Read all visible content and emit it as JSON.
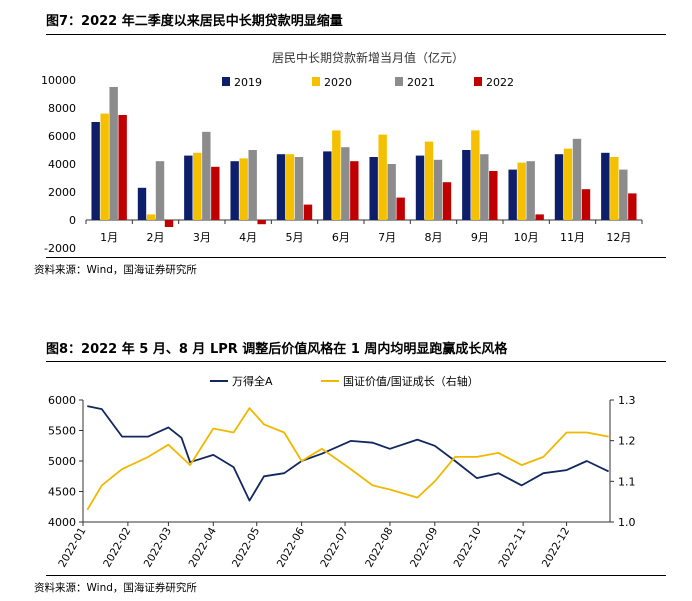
{
  "figure1": {
    "title": "图7：2022 年二季度以来居民中长期贷款明显缩量",
    "source": "资料来源：Wind，国海证券研究所"
  },
  "figure2": {
    "title": "图8：2022 年 5 月、8 月 LPR 调整后价值风格在 1 周内均明显跑赢成长风格",
    "source": "资料来源：Wind，国海证券研究所"
  },
  "colors": {
    "y2019": "#0d1f6b",
    "y2020": "#f5c000",
    "y2021": "#8c8c8c",
    "y2022": "#c00000",
    "wande": "#12275e",
    "value_growth": "#f0b800"
  },
  "chart_data": [
    {
      "type": "bar",
      "title": "居民中长期贷款新增当月值（亿元）",
      "categories": [
        "1月",
        "2月",
        "3月",
        "4月",
        "5月",
        "6月",
        "7月",
        "8月",
        "9月",
        "10月",
        "11月",
        "12月"
      ],
      "series": [
        {
          "name": "2019",
          "values": [
            7000,
            2300,
            4600,
            4200,
            4700,
            4900,
            4500,
            4600,
            5000,
            3600,
            4700,
            4800
          ]
        },
        {
          "name": "2020",
          "values": [
            7600,
            400,
            4800,
            4400,
            4700,
            6400,
            6100,
            5600,
            6400,
            4100,
            5100,
            4500
          ]
        },
        {
          "name": "2021",
          "values": [
            9500,
            4200,
            6300,
            5000,
            4500,
            5200,
            4000,
            4300,
            4700,
            4200,
            5800,
            3600
          ]
        },
        {
          "name": "2022",
          "values": [
            7500,
            -500,
            3800,
            -300,
            1100,
            4200,
            1600,
            2700,
            3500,
            400,
            2200,
            1900
          ]
        }
      ],
      "yticks": [
        "-2000",
        "0",
        "2000",
        "4000",
        "6000",
        "8000",
        "10000"
      ],
      "ylim": [
        -2000,
        10000
      ],
      "legend_position": "top"
    },
    {
      "type": "line",
      "series": [
        {
          "name": "万得全A",
          "axis": "left",
          "x": [
            "2022-01-04",
            "2022-01-14",
            "2022-01-28",
            "2022-02-15",
            "2022-03-01",
            "2022-03-10",
            "2022-03-16",
            "2022-04-01",
            "2022-04-15",
            "2022-04-26",
            "2022-05-06",
            "2022-05-20",
            "2022-06-01",
            "2022-06-15",
            "2022-07-05",
            "2022-07-20",
            "2022-08-01",
            "2022-08-20",
            "2022-09-01",
            "2022-09-15",
            "2022-09-30",
            "2022-10-15",
            "2022-10-31",
            "2022-11-15",
            "2022-12-01",
            "2022-12-15",
            "2022-12-30"
          ],
          "y": [
            5900,
            5850,
            5400,
            5400,
            5550,
            5380,
            4980,
            5100,
            4900,
            4350,
            4750,
            4800,
            5000,
            5120,
            5330,
            5300,
            5200,
            5350,
            5250,
            5000,
            4720,
            4800,
            4600,
            4800,
            4850,
            5000,
            4830
          ]
        },
        {
          "name": "国证价值/国证成长（右轴）",
          "axis": "right",
          "x": [
            "2022-01-04",
            "2022-01-14",
            "2022-01-28",
            "2022-02-15",
            "2022-03-01",
            "2022-03-16",
            "2022-04-01",
            "2022-04-15",
            "2022-04-26",
            "2022-05-06",
            "2022-05-20",
            "2022-06-01",
            "2022-06-15",
            "2022-07-05",
            "2022-07-20",
            "2022-08-01",
            "2022-08-20",
            "2022-09-01",
            "2022-09-15",
            "2022-09-30",
            "2022-10-15",
            "2022-10-31",
            "2022-11-15",
            "2022-12-01",
            "2022-12-15",
            "2022-12-30"
          ],
          "y": [
            1.03,
            1.09,
            1.13,
            1.16,
            1.19,
            1.14,
            1.23,
            1.22,
            1.28,
            1.24,
            1.22,
            1.15,
            1.18,
            1.13,
            1.09,
            1.08,
            1.06,
            1.1,
            1.16,
            1.16,
            1.17,
            1.14,
            1.16,
            1.22,
            1.22,
            1.21
          ]
        }
      ],
      "xticks": [
        "2022-01",
        "2022-02",
        "2022-03",
        "2022-04",
        "2022-05",
        "2022-06",
        "2022-07",
        "2022-08",
        "2022-09",
        "2022-10",
        "2022-11",
        "2022-12"
      ],
      "yticks_left": [
        "4000",
        "4500",
        "5000",
        "5500",
        "6000"
      ],
      "yticks_right": [
        "1.0",
        "1.1",
        "1.2",
        "1.3"
      ],
      "ylim_left": [
        4000,
        6000
      ],
      "ylim_right": [
        1.0,
        1.3
      ],
      "legend_position": "top"
    }
  ]
}
